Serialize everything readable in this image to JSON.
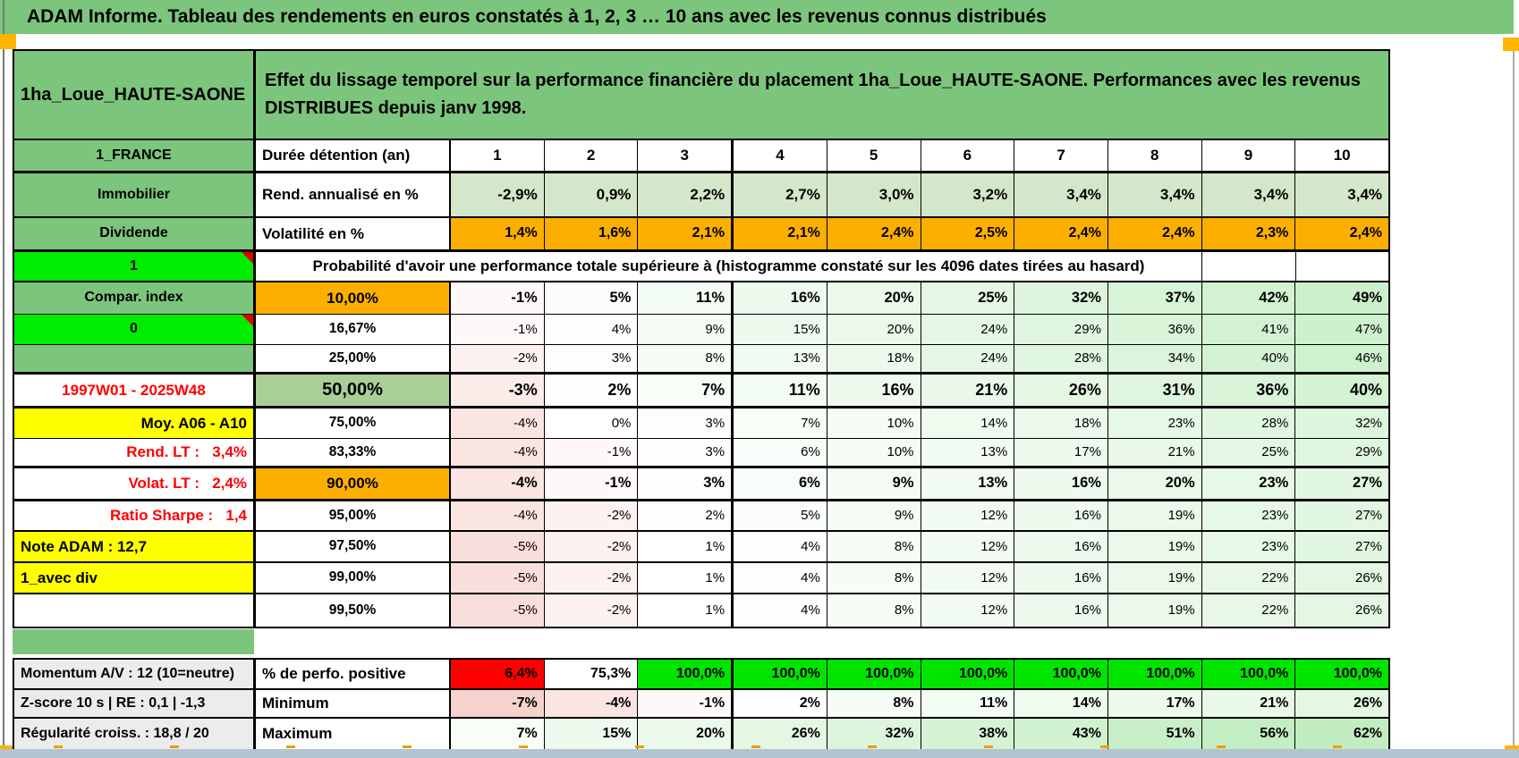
{
  "title_bar": {
    "text": "ADAM Informe. Tableau des rendements en euros constatés à 1, 2, 3 … 10 ans avec les revenus connus distribués"
  },
  "header": {
    "placement_name": "1ha_Loue_HAUTE-SAONE",
    "description": "Effet du lissage temporel sur la performance financière du placement 1ha_Loue_HAUTE-SAONE. Performances avec les revenus DISTRIBUES depuis janv 1998."
  },
  "side_labels": {
    "country": "1_FRANCE",
    "asset_class": "Immobilier",
    "income_type": "Dividende",
    "flag1": "1",
    "compare": "Compar. index",
    "flag0": "0",
    "blank_green": "",
    "period": "1997W01 - 2025W48",
    "moy": "Moy. A06 - A10",
    "rend_lt": "Rend. LT :   3,4%",
    "volat_lt": "Volat. LT :   2,4%",
    "sharpe": "Ratio Sharpe :   1,4",
    "note_adam": "Note ADAM : 12,7",
    "avec_div": "1_avec div",
    "blank_white": "",
    "momentum": "Momentum A/V : 12 (10=neutre)",
    "zscore": "Z-score 10 s | RE : 0,1 | -1,3",
    "regularite": "Régularité croiss. : 18,8 / 20"
  },
  "table": {
    "duration_label": "Durée détention (an)",
    "durations": [
      "1",
      "2",
      "3",
      "4",
      "5",
      "6",
      "7",
      "8",
      "9",
      "10"
    ],
    "rend_label": "Rend. annualisé en %",
    "rend_values": [
      "-2,9%",
      "0,9%",
      "2,2%",
      "2,7%",
      "3,0%",
      "3,2%",
      "3,4%",
      "3,4%",
      "3,4%",
      "3,4%"
    ],
    "volat_label": "Volatilité en %",
    "volat_values": [
      "1,4%",
      "1,6%",
      "2,1%",
      "2,1%",
      "2,4%",
      "2,5%",
      "2,4%",
      "2,4%",
      "2,3%",
      "2,4%"
    ],
    "probability_banner": "Probabilité d'avoir une performance totale supérieure à (histogramme constaté sur les 4096 dates tirées au hasard)",
    "probability_rows": [
      {
        "threshold": "10,00%",
        "values": [
          "-1%",
          "5%",
          "11%",
          "16%",
          "20%",
          "25%",
          "32%",
          "37%",
          "42%",
          "49%"
        ]
      },
      {
        "threshold": "16,67%",
        "values": [
          "-1%",
          "4%",
          "9%",
          "15%",
          "20%",
          "24%",
          "29%",
          "36%",
          "41%",
          "47%"
        ]
      },
      {
        "threshold": "25,00%",
        "values": [
          "-2%",
          "3%",
          "8%",
          "13%",
          "18%",
          "24%",
          "28%",
          "34%",
          "40%",
          "46%"
        ]
      },
      {
        "threshold": "50,00%",
        "values": [
          "-3%",
          "2%",
          "7%",
          "11%",
          "16%",
          "21%",
          "26%",
          "31%",
          "36%",
          "40%"
        ]
      },
      {
        "threshold": "75,00%",
        "values": [
          "-4%",
          "0%",
          "3%",
          "7%",
          "10%",
          "14%",
          "18%",
          "23%",
          "28%",
          "32%"
        ]
      },
      {
        "threshold": "83,33%",
        "values": [
          "-4%",
          "-1%",
          "3%",
          "6%",
          "10%",
          "13%",
          "17%",
          "21%",
          "25%",
          "29%"
        ]
      },
      {
        "threshold": "90,00%",
        "values": [
          "-4%",
          "-1%",
          "3%",
          "6%",
          "9%",
          "13%",
          "16%",
          "20%",
          "23%",
          "27%"
        ]
      },
      {
        "threshold": "95,00%",
        "values": [
          "-4%",
          "-2%",
          "2%",
          "5%",
          "9%",
          "12%",
          "16%",
          "19%",
          "23%",
          "27%"
        ]
      },
      {
        "threshold": "97,50%",
        "values": [
          "-5%",
          "-2%",
          "1%",
          "4%",
          "8%",
          "12%",
          "16%",
          "19%",
          "23%",
          "27%"
        ]
      },
      {
        "threshold": "99,00%",
        "values": [
          "-5%",
          "-2%",
          "1%",
          "4%",
          "8%",
          "12%",
          "16%",
          "19%",
          "22%",
          "26%"
        ]
      },
      {
        "threshold": "99,50%",
        "values": [
          "-5%",
          "-2%",
          "1%",
          "4%",
          "8%",
          "12%",
          "16%",
          "19%",
          "22%",
          "26%"
        ]
      }
    ],
    "bottom_rows": [
      {
        "label": "% de perfo. positive",
        "values": [
          "6,4%",
          "75,3%",
          "100,0%",
          "100,0%",
          "100,0%",
          "100,0%",
          "100,0%",
          "100,0%",
          "100,0%",
          "100,0%"
        ]
      },
      {
        "label": "Minimum",
        "values": [
          "-7%",
          "-4%",
          "-1%",
          "2%",
          "8%",
          "11%",
          "14%",
          "17%",
          "21%",
          "26%"
        ]
      },
      {
        "label": "Maximum",
        "values": [
          "7%",
          "15%",
          "20%",
          "26%",
          "32%",
          "38%",
          "43%",
          "51%",
          "56%",
          "62%"
        ]
      }
    ]
  },
  "colors": {
    "header_green": "#7CC57C",
    "bright_green": "#00EC00",
    "cell_green_50": "#A9CF97",
    "rend_row_green": "#D5E7CA",
    "orange": "#FCAF00",
    "yellow": "#FFFF00",
    "red": "#FF0000",
    "perfo_green": "#00E400",
    "status_blue": "#B4C3D1"
  }
}
